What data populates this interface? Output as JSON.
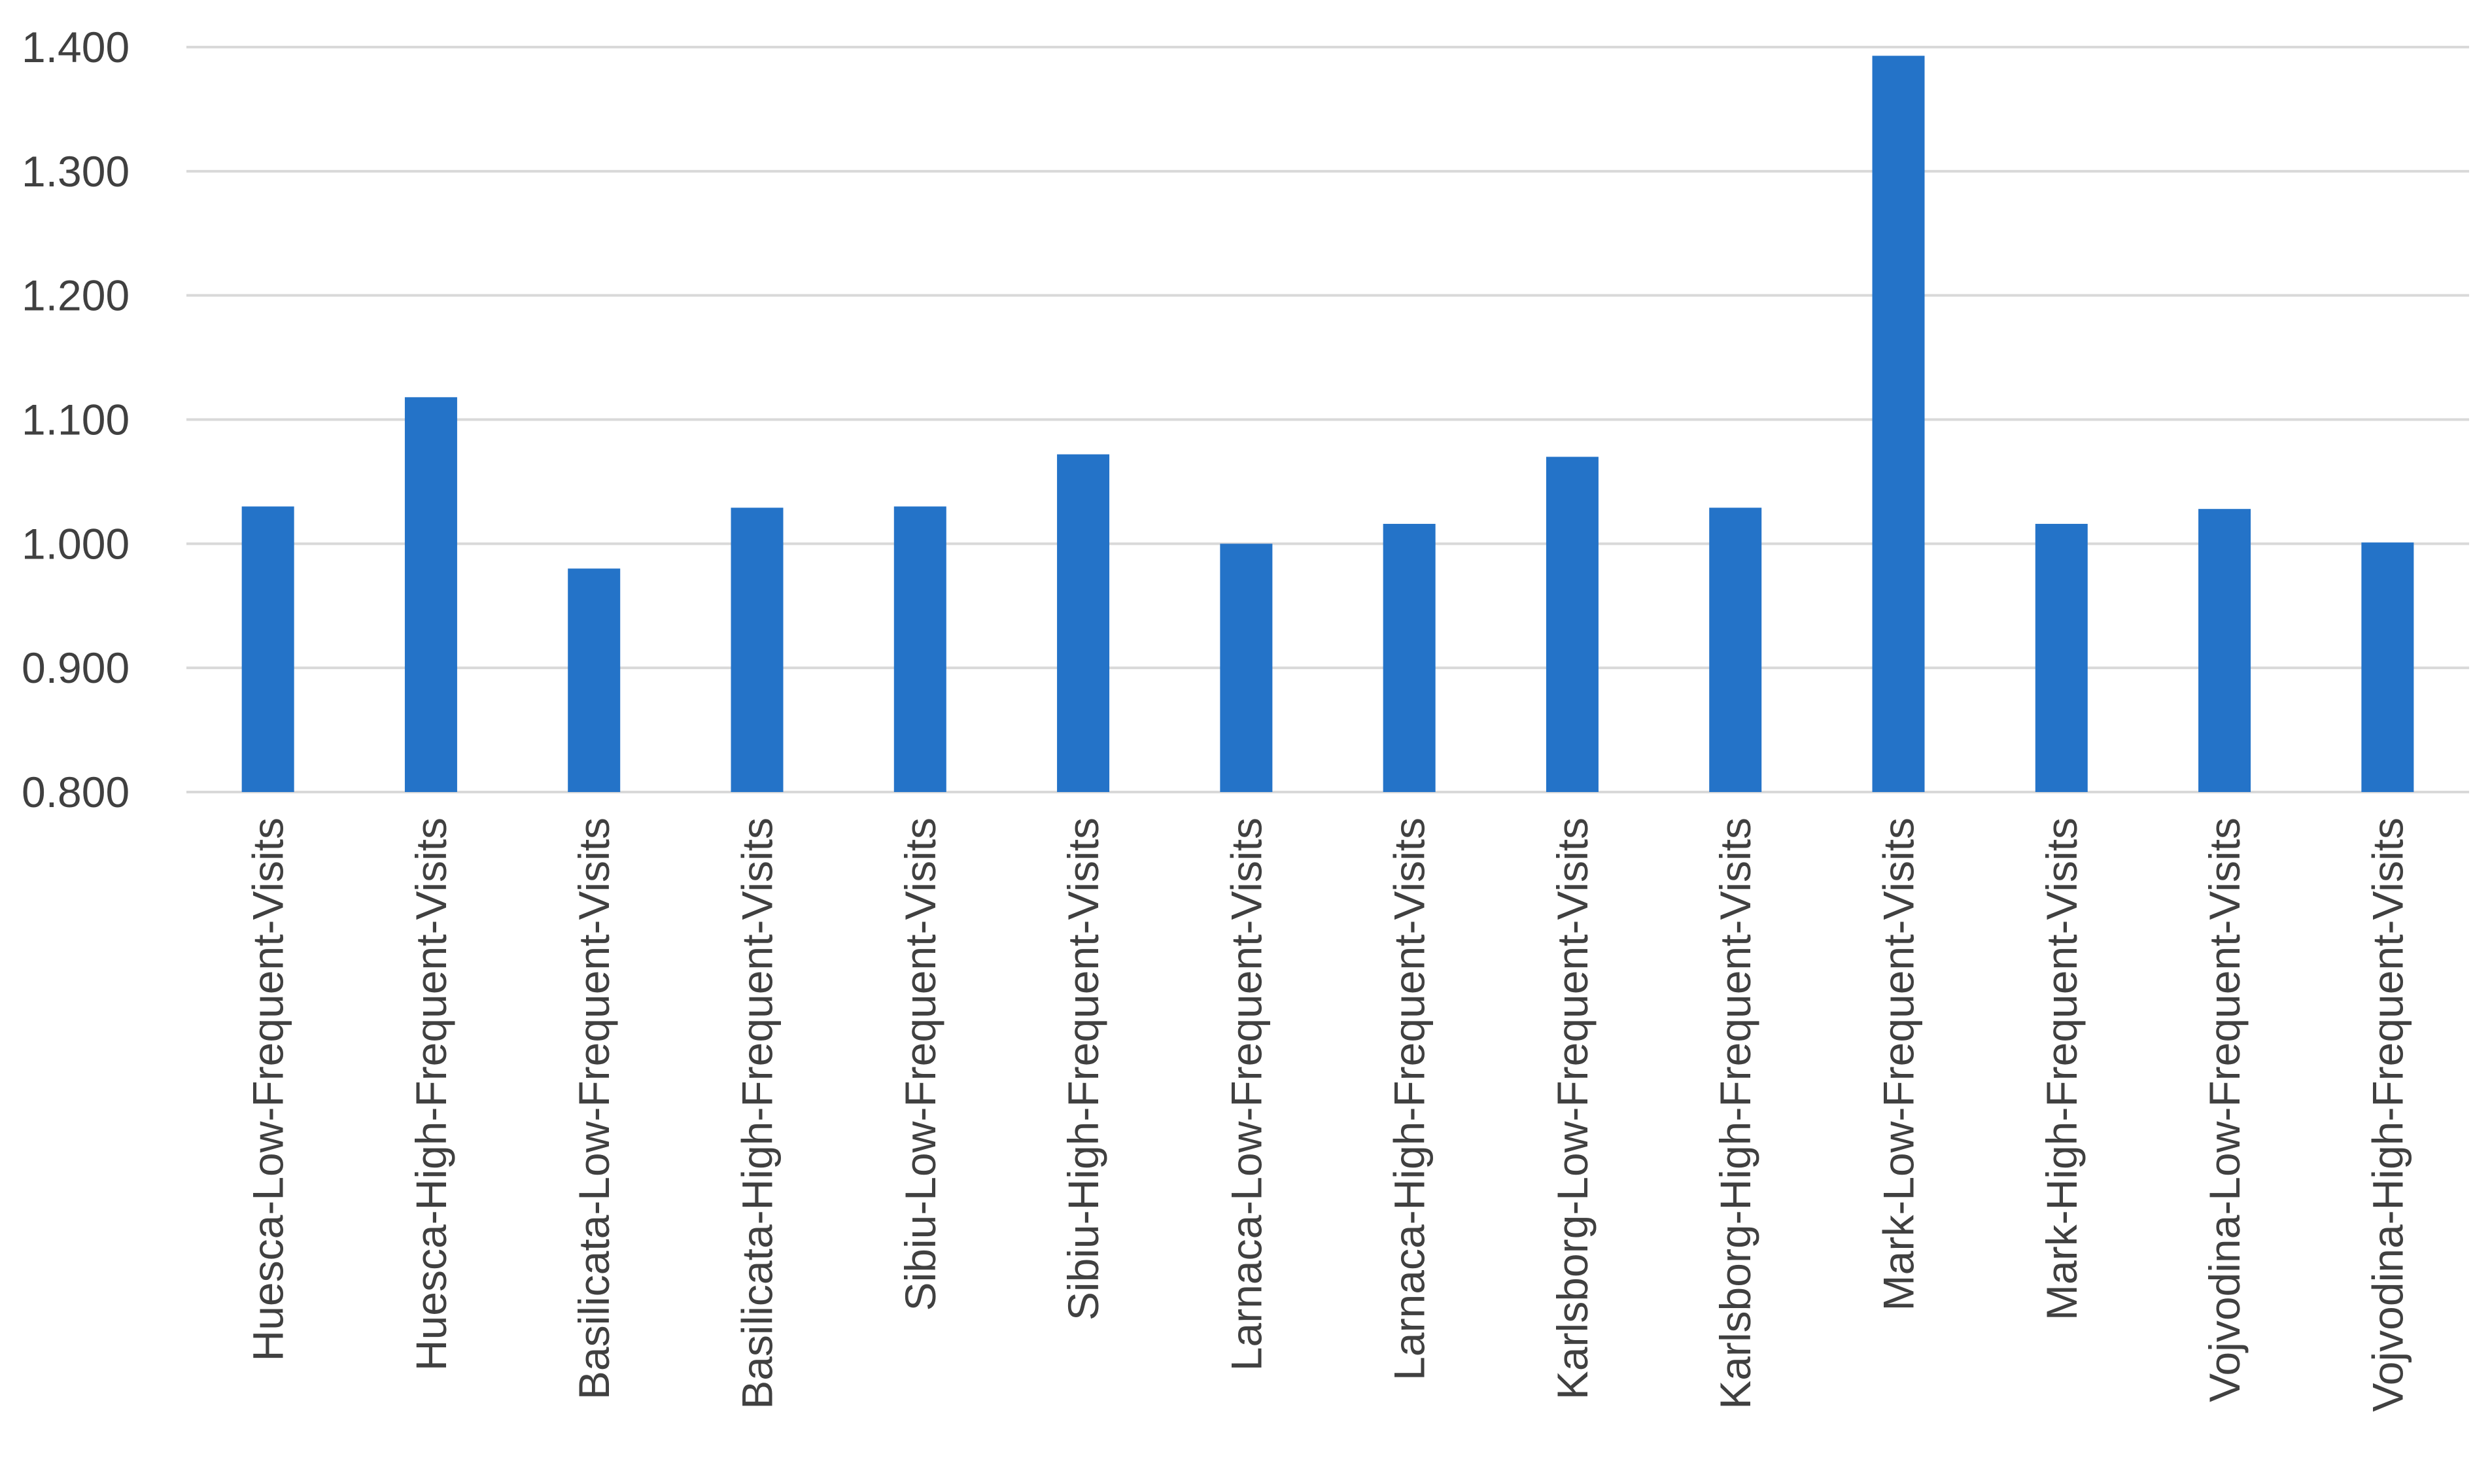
{
  "chart_data": {
    "type": "bar",
    "categories": [
      "Huesca-Low-Frequent-Visits",
      "Huesca-High-Frequent-Visits",
      "Basilicata-Low-Frequent-Visits",
      "Basilicata-High-Frequent-Visits",
      "Sibiu-Low-Frequent-Visits",
      "Sibiu-High-Frequent-Visits",
      "Larnaca-Low-Frequent-Visits",
      "Larnaca-High-Frequent-Visits",
      "Karlsborg-Low-Frequent-Visits",
      "Karlsborg-High-Frequent-Visits",
      "Mark-Low-Frequent-Visits",
      "Mark-High-Frequent-Visits",
      "Vojvodina-Low-Frequent-Visits",
      "Vojvodina-High-Frequent-Visits"
    ],
    "values": [
      1.03,
      1.118,
      0.98,
      1.029,
      1.03,
      1.072,
      1.0,
      1.016,
      1.07,
      1.029,
      1.393,
      1.016,
      1.028,
      1.001
    ],
    "title": "",
    "xlabel": "",
    "ylabel": "",
    "ylim": [
      0.8,
      1.4
    ],
    "ytick_step": 0.1,
    "ytick_labels": [
      "0.800",
      "0.900",
      "1.000",
      "1.100",
      "1.200",
      "1.300",
      "1.400"
    ],
    "grid": true,
    "legend": false,
    "legend_position": "none",
    "bar_color": "#2473C8",
    "gridline_color": "#D9D9D9",
    "label_color": "#404040",
    "background_color": "#FFFFFF"
  }
}
